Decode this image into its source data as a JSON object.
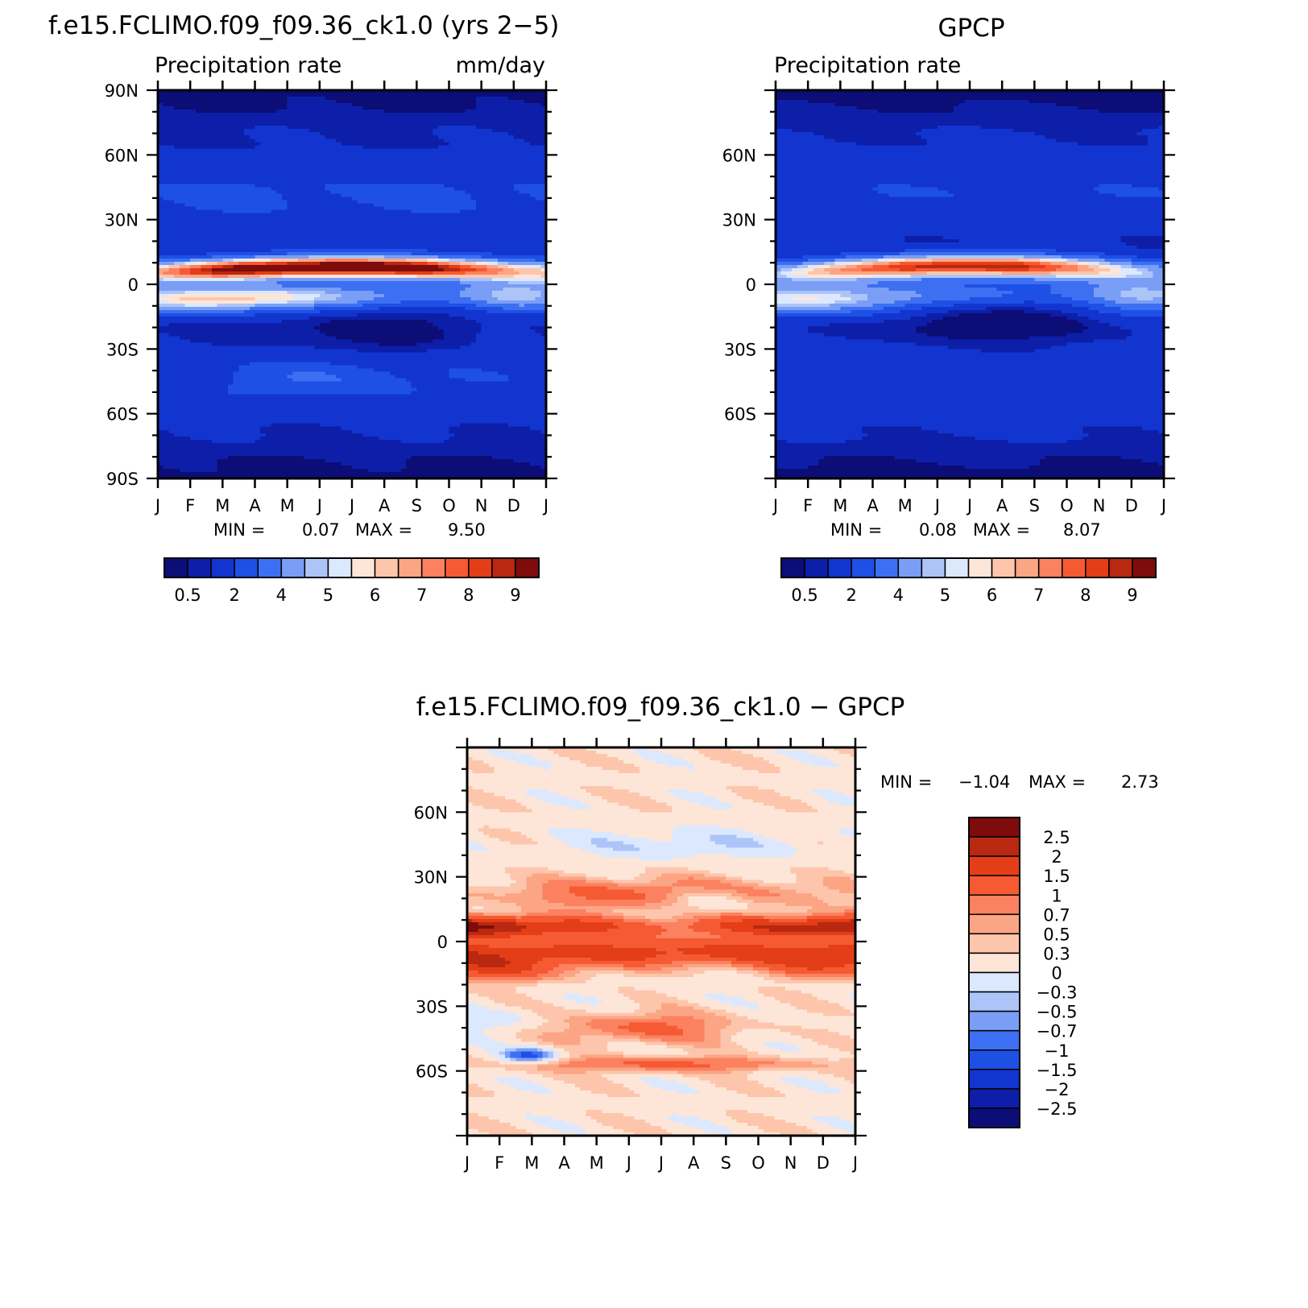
{
  "colors": {
    "precip_scale": [
      "#0d0d78",
      "#0d1fa8",
      "#1235d0",
      "#1e50e6",
      "#3d6ff2",
      "#7a9ef6",
      "#adc4f9",
      "#dce8fd",
      "#fde6d8",
      "#fdc6ac",
      "#fca584",
      "#fb8160",
      "#f65a33",
      "#e33e17",
      "#b92810",
      "#7f0c0c"
    ],
    "diff_scale": [
      "#0d0d78",
      "#0d1fa8",
      "#1235d0",
      "#1e50e6",
      "#3d6ff2",
      "#7a9ef6",
      "#adc4f9",
      "#dce8fd",
      "#fde6d8",
      "#fdc6ac",
      "#fca584",
      "#fb8160",
      "#f65a33",
      "#e33e17",
      "#b92810",
      "#7f0c0c"
    ]
  },
  "chart_data": [
    {
      "type": "heatmap",
      "id": "model",
      "title": "f.e15.FCLIMO.f09_f09.36_ck1.0 (yrs 2−5)",
      "subtitle_left": "Precipitation  rate",
      "subtitle_right": "mm/day",
      "x_ticks": [
        "J",
        "F",
        "M",
        "A",
        "M",
        "J",
        "J",
        "A",
        "S",
        "O",
        "N",
        "D",
        "J"
      ],
      "y_ticks": [
        "90N",
        "60N",
        "30N",
        "0",
        "30S",
        "60S",
        "90S"
      ],
      "min_label": "MIN =",
      "min_value": "0.07",
      "max_label": "MAX =",
      "max_value": "9.50",
      "colorbar_labels": [
        "0.5",
        "2",
        "4",
        "5",
        "6",
        "7",
        "8",
        "9"
      ],
      "levels": [
        0.5,
        1,
        2,
        3,
        4,
        5,
        5.5,
        6,
        6.5,
        7,
        7.5,
        8,
        8.5,
        9,
        9.5
      ],
      "grid": false
    },
    {
      "type": "heatmap",
      "id": "obs",
      "title": "GPCP",
      "subtitle_left": "Precipitation  rate",
      "x_ticks": [
        "J",
        "F",
        "M",
        "A",
        "M",
        "J",
        "J",
        "A",
        "S",
        "O",
        "N",
        "D",
        "J"
      ],
      "y_ticks": [
        "60N",
        "30N",
        "0",
        "30S",
        "60S"
      ],
      "min_label": "MIN =",
      "min_value": "0.08",
      "max_label": "MAX =",
      "max_value": "8.07",
      "colorbar_labels": [
        "0.5",
        "2",
        "4",
        "5",
        "6",
        "7",
        "8",
        "9"
      ],
      "levels": [
        0.5,
        1,
        2,
        3,
        4,
        5,
        5.5,
        6,
        6.5,
        7,
        7.5,
        8,
        8.5,
        9,
        9.5
      ],
      "grid": false
    },
    {
      "type": "heatmap",
      "id": "diff",
      "title": "f.e15.FCLIMO.f09_f09.36_ck1.0  −  GPCP",
      "x_ticks": [
        "J",
        "F",
        "M",
        "A",
        "M",
        "J",
        "J",
        "A",
        "S",
        "O",
        "N",
        "D",
        "J"
      ],
      "y_ticks": [
        "60N",
        "30N",
        "0",
        "30S",
        "60S"
      ],
      "min_label": "MIN =",
      "min_value": "−1.04",
      "max_label": "MAX =",
      "max_value": "2.73",
      "colorbar_labels": [
        "2.5",
        "2",
        "1.5",
        "1",
        "0.7",
        "0.5",
        "0.3",
        "0",
        "−0.3",
        "−0.5",
        "−0.7",
        "−1",
        "−1.5",
        "−2",
        "−2.5"
      ],
      "levels": [
        -2.5,
        -2,
        -1.5,
        -1,
        -0.7,
        -0.5,
        -0.3,
        0,
        0.3,
        0.5,
        0.7,
        1,
        1.5,
        2,
        2.5
      ],
      "grid": false
    }
  ]
}
